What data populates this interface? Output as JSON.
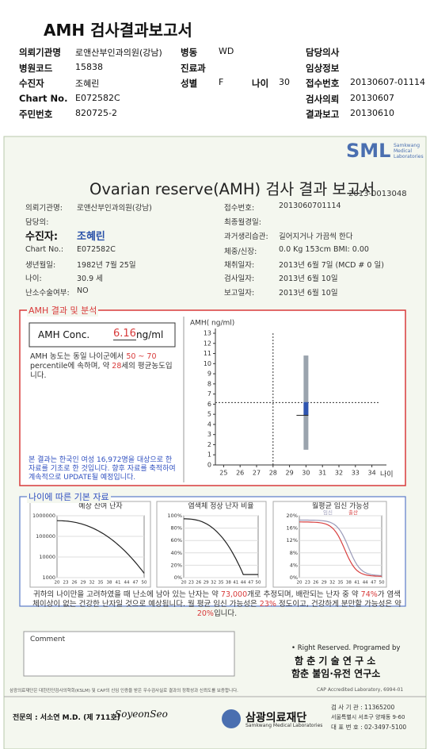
{
  "header": {
    "title": "AMH 검사결과보고서",
    "fields": [
      {
        "label": "의뢰기관명",
        "value": "로앤산부인과의원(강남)"
      },
      {
        "label": "병동",
        "value": "WD"
      },
      {
        "label": "담당의사"
      },
      {
        "label": "병원코드",
        "value": "15838"
      },
      {
        "label": "진료과"
      },
      {
        "label": "임상정보"
      },
      {
        "label": "수진자",
        "value": "조혜린"
      },
      {
        "label": "성별",
        "value": "F"
      },
      {
        "label": "나이",
        "value": "30"
      },
      {
        "label": "접수번호",
        "value": "20130607-01114"
      },
      {
        "label": "Chart No.",
        "value": "E072582C"
      },
      {
        "label": "검사의뢰",
        "value": "20130607"
      },
      {
        "label": "주민번호",
        "value": "820725-2"
      },
      {
        "label": "결과보고",
        "value": "20130610"
      }
    ]
  },
  "report": {
    "logo": "SML",
    "logo_sub": "Samkwang Medical Laboratories",
    "title": "Ovarian reserve(AMH) 검사 결과 보고서",
    "number": "2013-0013048",
    "left": [
      {
        "label": "의뢰기관명:",
        "value": "로앤산부인과의원(강남)"
      },
      {
        "label": "담당의:"
      },
      {
        "label": "수진자:",
        "value": "조혜린"
      },
      {
        "label": "Chart No.:",
        "value": "E072582C"
      },
      {
        "label": "생년월일:",
        "value": "1982년 7월 25일"
      },
      {
        "label": "나이:",
        "value": "30.9 세"
      },
      {
        "label": "난소수술여부:",
        "value": "NO"
      }
    ],
    "right": [
      {
        "label": "접수번호:",
        "value": "2013060701114"
      },
      {
        "label": "최종월경일:"
      },
      {
        "label": "과거생리습관:",
        "value": "길어지거나 가끔씩 한다"
      },
      {
        "label": "체중/신장:",
        "value": "0.0 Kg   153cm   BMI:  0.00"
      },
      {
        "label": "채취일자:",
        "value": "2013년 6월 7일   (MCD #  0 일)"
      },
      {
        "label": "검사일자:",
        "value": "2013년 6월 10일"
      },
      {
        "label": "보고일자:",
        "value": "2013년 6월 10일"
      }
    ],
    "amh_section": "AMH 결과 및 분석",
    "conc_label": "AMH Conc.",
    "conc_value": 6.16,
    "conc_unit": "ng/ml",
    "interpretation": [
      "AMH 농도는 동일 나이군에서 ",
      "50 ~ 70",
      " percentile에 속하며, 약 ",
      "28",
      "세의 평균농도입니다."
    ],
    "note": "본 결과는 한국인 여성 16,972명을 대상으로 한 자료를 기초로 한 것입니다. 향후 자료를 축적하여 계속적으로 UPDATE될 예정입니다.",
    "basic_section": "나이에 따른 기본 자료",
    "summary": [
      "귀하의 나이만을 고려하였을 때 난소에 남아 있는 난자는 약 ",
      "73,000",
      "개로 추정되며, 배란되는 난자 중 약 ",
      "74%",
      "가 염색체이상이 없는 건강한 난자일 것으로 예상됩니다. 월 평균 임신 가능성은 ",
      "23%",
      " 정도이고, 건강하게 분만할 가능성은 약 ",
      "20%",
      "입니다."
    ],
    "comment": "Comment",
    "rights": "• Right Reserved.  Programed by",
    "lab1": "함 춘 기 술 연 구 소",
    "lab2": "함춘 불임·유전 연구소"
  },
  "footer": {
    "notice": "삼광의료재단은 대한진단검사의학회(KSLM) 및 CAP의 신임 인증을 받은 우수검사실로 결과의 정확성과 신뢰도를 보증합니다.",
    "cap": "CAP  Accredited  Laboratory,  6994-01",
    "doctor": "전문의 : 서소연 M.D. (제 711호)",
    "signature": "SoyeonSeo",
    "org": "삼광의료재단",
    "org_en": "Samkwang Medical Laboratories",
    "code": "검 사 기 관 : 11365200",
    "address": "서울특별시 서초구 양재동 9-60",
    "phone": "대 표 번 호 : 02-3497-5100"
  },
  "chart_data": [
    {
      "type": "box",
      "ylabel": "AMH( ng/ml)",
      "xlabel": "나이",
      "xlim": [
        24.5,
        34.5
      ],
      "xticks": [
        25,
        26,
        27,
        28,
        29,
        30,
        31,
        32,
        33,
        34
      ],
      "ylim": [
        0,
        13
      ],
      "yticks": [
        0,
        1,
        2,
        3,
        4,
        5,
        6,
        7,
        8,
        9,
        10,
        11,
        12,
        13
      ],
      "x": 30,
      "range": [
        1.5,
        10.8
      ],
      "box": [
        4.9,
        6.2
      ],
      "reference_x": 28,
      "reference_y": 6.16
    },
    {
      "type": "line",
      "title": "예상 잔여 난자",
      "log_y": true,
      "ylim": [
        1000,
        1000000
      ],
      "yticks": [
        1000,
        10000,
        100000,
        1000000
      ],
      "xlim": [
        20,
        50
      ],
      "xticks": [
        20,
        23,
        26,
        29,
        32,
        35,
        38,
        41,
        44,
        47,
        50
      ]
    },
    {
      "type": "line",
      "title": "염색체 정상 난자 비율",
      "ylim": [
        0,
        100
      ],
      "yticks": [
        {
          "value": 0,
          "label": "0%"
        },
        {
          "value": 20,
          "label": "20%"
        },
        {
          "value": 40,
          "label": "40%"
        },
        {
          "value": 60,
          "label": "60%"
        },
        {
          "value": 80,
          "label": "80%"
        },
        {
          "value": 100,
          "label": "100%"
        }
      ],
      "xlim": [
        20,
        50
      ],
      "xticks": [
        20,
        23,
        26,
        29,
        32,
        35,
        38,
        41,
        44,
        47,
        50
      ]
    },
    {
      "type": "line",
      "title": "월평균 임신 가능성",
      "ylim": [
        0,
        20
      ],
      "yticks": [
        {
          "value": 0,
          "label": "0%"
        },
        {
          "value": 4,
          "label": "4%"
        },
        {
          "value": 8,
          "label": "8%"
        },
        {
          "value": 12,
          "label": "12%"
        },
        {
          "value": 16,
          "label": "16%"
        },
        {
          "value": 20,
          "label": "20%"
        }
      ],
      "xlim": [
        20,
        50
      ],
      "xticks": [
        20,
        23,
        26,
        29,
        32,
        35,
        38,
        41,
        44,
        47,
        50
      ],
      "legend": [
        {
          "name": "임신",
          "color": "#9a9ab8"
        },
        {
          "name": "출산",
          "color": "#d84040"
        }
      ]
    }
  ]
}
